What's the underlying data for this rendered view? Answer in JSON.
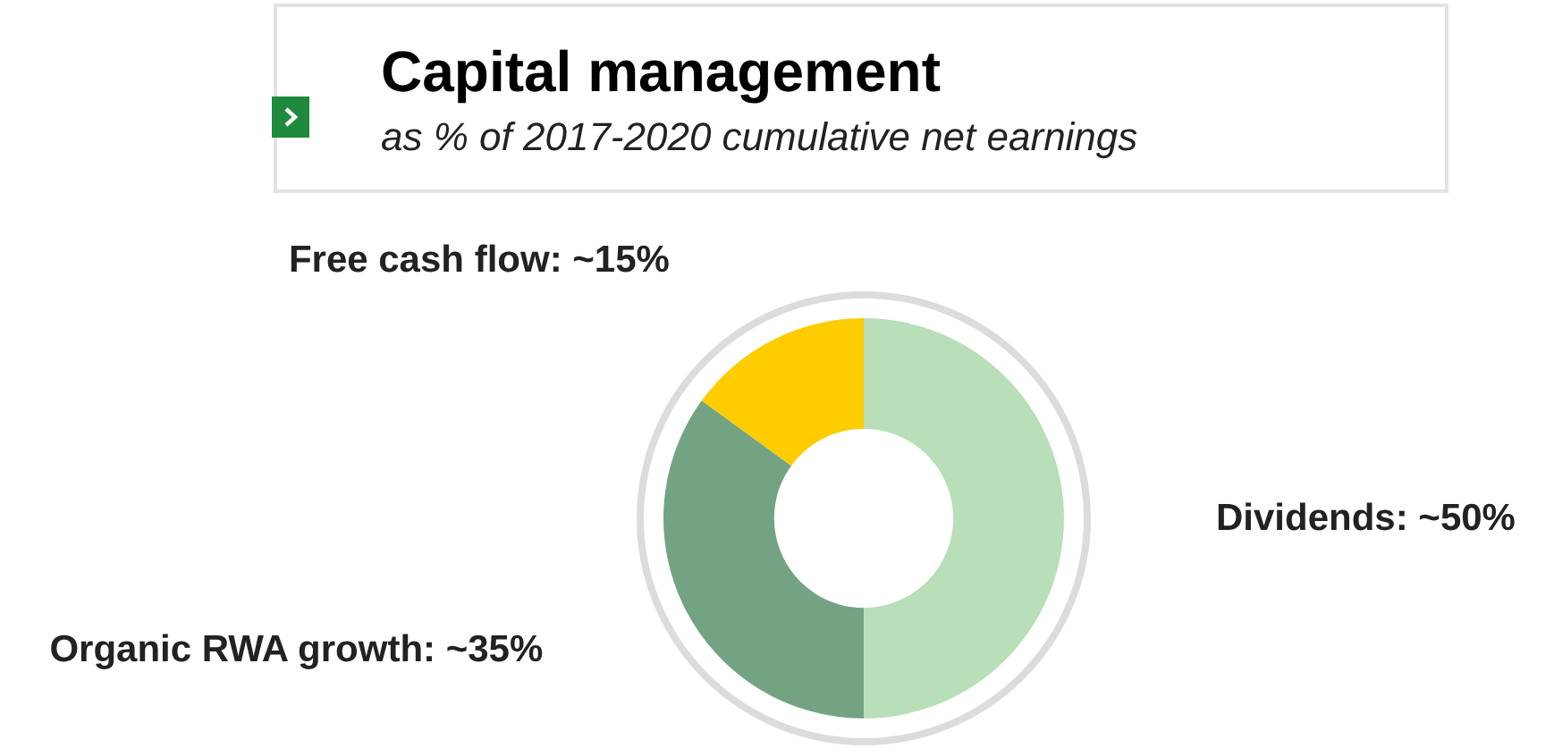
{
  "chart_data": {
    "type": "donut",
    "title": "Capital management",
    "subtitle": "as % of 2017-2020 cumulative net earnings",
    "categories": [
      "Dividends",
      "Organic RWA growth",
      "Free cash flow"
    ],
    "values": [
      50,
      35,
      15
    ],
    "value_labels": [
      "~50%",
      "~35%",
      "~15%"
    ],
    "colors": [
      "#b8dfb8",
      "#74a383",
      "#ffcc00"
    ],
    "legend": false
  }
}
